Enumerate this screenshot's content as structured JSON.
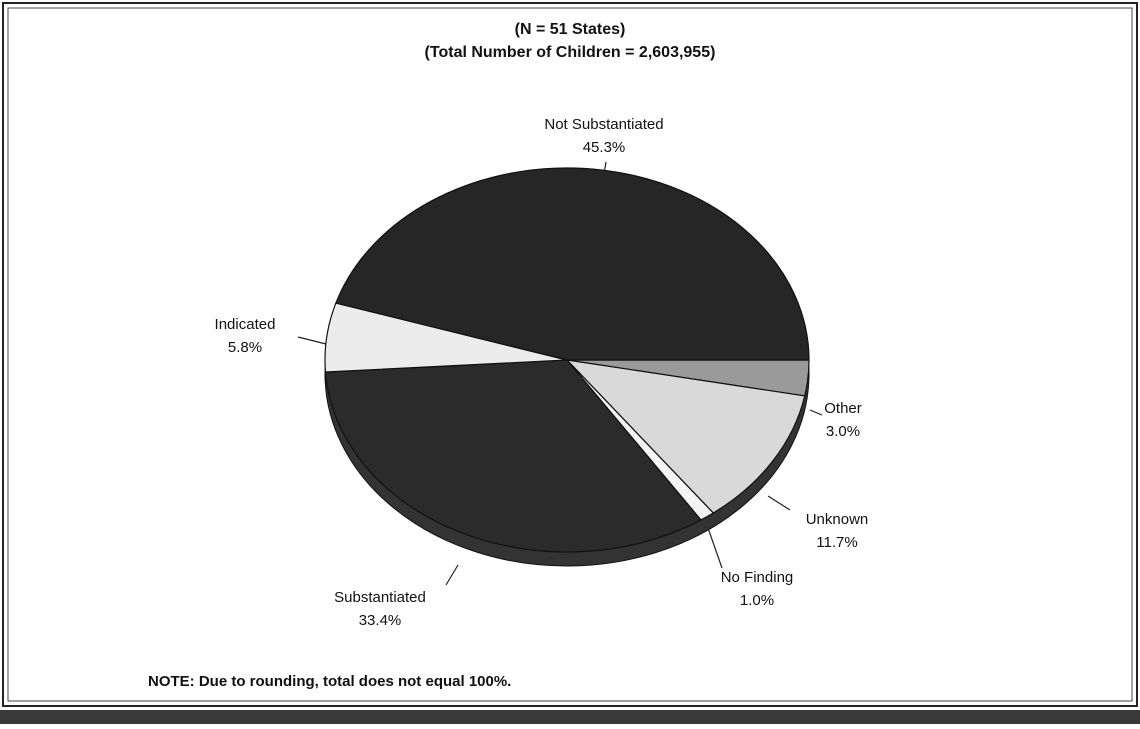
{
  "chart_data": {
    "type": "pie",
    "title": "(N = 51 States)",
    "subtitle": "(Total Number of Children = 2,603,955)",
    "categories": [
      "Other",
      "Unknown",
      "No Finding",
      "Substantiated",
      "Indicated",
      "Not Substantiated"
    ],
    "values": [
      3.0,
      11.7,
      1.0,
      33.4,
      5.8,
      45.3
    ],
    "value_labels": [
      "3.0%",
      "11.7%",
      "1.0%",
      "33.4%",
      "5.8%",
      "45.3%"
    ],
    "colors": [
      "#9a9a9a",
      "#d9d9d9",
      "#f4f4f4",
      "#2b2b2b",
      "#ececec",
      "#262626"
    ],
    "note": "NOTE:  Due to rounding, total does not equal 100%."
  }
}
